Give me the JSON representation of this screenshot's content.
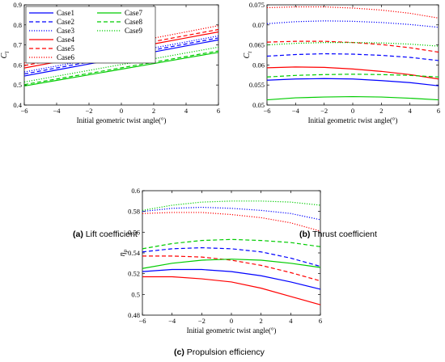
{
  "figure": {
    "captions": [
      {
        "tag": "(a)",
        "text": "Lift coefficient"
      },
      {
        "tag": "(b)",
        "text": "Thrust coefficient"
      },
      {
        "tag": "(c)",
        "text": "Propulsion efficiency"
      }
    ]
  },
  "series_styles": [
    {
      "name": "Case1",
      "color": "#0000ff",
      "dash": "solid"
    },
    {
      "name": "Case2",
      "color": "#0000ff",
      "dash": "dashed"
    },
    {
      "name": "Case3",
      "color": "#0000ff",
      "dash": "dotted"
    },
    {
      "name": "Case4",
      "color": "#ff0000",
      "dash": "solid"
    },
    {
      "name": "Case5",
      "color": "#ff0000",
      "dash": "dashed"
    },
    {
      "name": "Case6",
      "color": "#ff0000",
      "dash": "dotted"
    },
    {
      "name": "Case7",
      "color": "#00cc00",
      "dash": "solid"
    },
    {
      "name": "Case8",
      "color": "#00cc00",
      "dash": "dashed"
    },
    {
      "name": "Case9",
      "color": "#00cc00",
      "dash": "dotted"
    }
  ],
  "chart_data": [
    {
      "type": "line",
      "title": "",
      "xlabel": "Initial geometric twist angle(°)",
      "ylabel": "C_l",
      "xlim": [
        -6,
        6
      ],
      "ylim": [
        0.4,
        0.9
      ],
      "xticks": [
        -6,
        -4,
        -2,
        0,
        2,
        4,
        6
      ],
      "yticks": [
        0.4,
        0.5,
        0.6,
        0.7,
        0.8,
        0.9
      ],
      "legend": "top-left",
      "x": [
        -6,
        -4,
        -2,
        0,
        2,
        4,
        6
      ],
      "series": [
        {
          "name": "Case1",
          "values": [
            0.545,
            0.575,
            0.605,
            0.635,
            0.665,
            0.695,
            0.725
          ]
        },
        {
          "name": "Case2",
          "values": [
            0.555,
            0.585,
            0.615,
            0.645,
            0.675,
            0.705,
            0.735
          ]
        },
        {
          "name": "Case3",
          "values": [
            0.565,
            0.595,
            0.625,
            0.655,
            0.685,
            0.715,
            0.745
          ]
        },
        {
          "name": "Case4",
          "values": [
            0.585,
            0.615,
            0.645,
            0.675,
            0.705,
            0.735,
            0.765
          ]
        },
        {
          "name": "Case5",
          "values": [
            0.597,
            0.627,
            0.657,
            0.687,
            0.717,
            0.747,
            0.777
          ]
        },
        {
          "name": "Case6",
          "values": [
            0.61,
            0.641,
            0.672,
            0.703,
            0.734,
            0.765,
            0.796
          ]
        },
        {
          "name": "Case7",
          "values": [
            0.495,
            0.523,
            0.551,
            0.579,
            0.607,
            0.635,
            0.663
          ]
        },
        {
          "name": "Case8",
          "values": [
            0.502,
            0.53,
            0.558,
            0.586,
            0.614,
            0.642,
            0.67
          ]
        },
        {
          "name": "Case9",
          "values": [
            0.515,
            0.544,
            0.573,
            0.602,
            0.631,
            0.66,
            0.689
          ]
        }
      ]
    },
    {
      "type": "line",
      "title": "",
      "xlabel": "Initial geometric twist angle(°)",
      "ylabel": "C_t",
      "xlim": [
        -6,
        6
      ],
      "ylim": [
        0.05,
        0.075
      ],
      "xticks": [
        -6,
        -4,
        -2,
        0,
        2,
        4,
        6
      ],
      "yticks": [
        0.05,
        0.055,
        0.06,
        0.065,
        0.07,
        0.075
      ],
      "legend": "none",
      "x": [
        -6,
        -4,
        -2,
        0,
        2,
        4,
        6
      ],
      "series": [
        {
          "name": "Case1",
          "values": [
            0.0562,
            0.0565,
            0.0566,
            0.0565,
            0.0561,
            0.0556,
            0.0548
          ]
        },
        {
          "name": "Case2",
          "values": [
            0.0622,
            0.0626,
            0.0628,
            0.0627,
            0.0624,
            0.0619,
            0.0611
          ]
        },
        {
          "name": "Case3",
          "values": [
            0.0703,
            0.0708,
            0.071,
            0.0709,
            0.0706,
            0.0701,
            0.0694
          ]
        },
        {
          "name": "Case4",
          "values": [
            0.0593,
            0.0595,
            0.0594,
            0.059,
            0.0584,
            0.0576,
            0.0565
          ]
        },
        {
          "name": "Case5",
          "values": [
            0.0657,
            0.0659,
            0.0659,
            0.0656,
            0.0651,
            0.0643,
            0.0632
          ]
        },
        {
          "name": "Case6",
          "values": [
            0.0743,
            0.0745,
            0.0745,
            0.0742,
            0.0737,
            0.0729,
            0.0717
          ]
        },
        {
          "name": "Case7",
          "values": [
            0.0513,
            0.0518,
            0.052,
            0.0521,
            0.052,
            0.0517,
            0.0513
          ]
        },
        {
          "name": "Case8",
          "values": [
            0.057,
            0.0574,
            0.0576,
            0.0577,
            0.0576,
            0.0574,
            0.057
          ]
        },
        {
          "name": "Case9",
          "values": [
            0.065,
            0.0654,
            0.0656,
            0.0656,
            0.0655,
            0.0652,
            0.0647
          ]
        }
      ]
    },
    {
      "type": "line",
      "title": "",
      "xlabel": "Initial geometric twist angle(°)",
      "ylabel": "η_p",
      "xlim": [
        -6,
        6
      ],
      "ylim": [
        0.48,
        0.6
      ],
      "xticks": [
        -6,
        -4,
        -2,
        0,
        2,
        4,
        6
      ],
      "yticks": [
        0.48,
        0.5,
        0.52,
        0.54,
        0.56,
        0.58,
        0.6
      ],
      "legend": "none",
      "x": [
        -6,
        -4,
        -2,
        0,
        2,
        4,
        6
      ],
      "series": [
        {
          "name": "Case1",
          "values": [
            0.522,
            0.524,
            0.524,
            0.522,
            0.518,
            0.512,
            0.505
          ]
        },
        {
          "name": "Case2",
          "values": [
            0.541,
            0.544,
            0.545,
            0.544,
            0.541,
            0.535,
            0.527
          ]
        },
        {
          "name": "Case3",
          "values": [
            0.58,
            0.583,
            0.584,
            0.583,
            0.581,
            0.578,
            0.572
          ]
        },
        {
          "name": "Case4",
          "values": [
            0.517,
            0.517,
            0.515,
            0.512,
            0.506,
            0.498,
            0.49
          ]
        },
        {
          "name": "Case5",
          "values": [
            0.537,
            0.537,
            0.536,
            0.533,
            0.528,
            0.521,
            0.513
          ]
        },
        {
          "name": "Case6",
          "values": [
            0.578,
            0.579,
            0.579,
            0.577,
            0.574,
            0.569,
            0.561
          ]
        },
        {
          "name": "Case7",
          "values": [
            0.525,
            0.53,
            0.533,
            0.534,
            0.533,
            0.53,
            0.526
          ]
        },
        {
          "name": "Case8",
          "values": [
            0.544,
            0.549,
            0.552,
            0.553,
            0.552,
            0.55,
            0.546
          ]
        },
        {
          "name": "Case9",
          "values": [
            0.581,
            0.586,
            0.589,
            0.59,
            0.59,
            0.589,
            0.586
          ]
        }
      ]
    }
  ]
}
